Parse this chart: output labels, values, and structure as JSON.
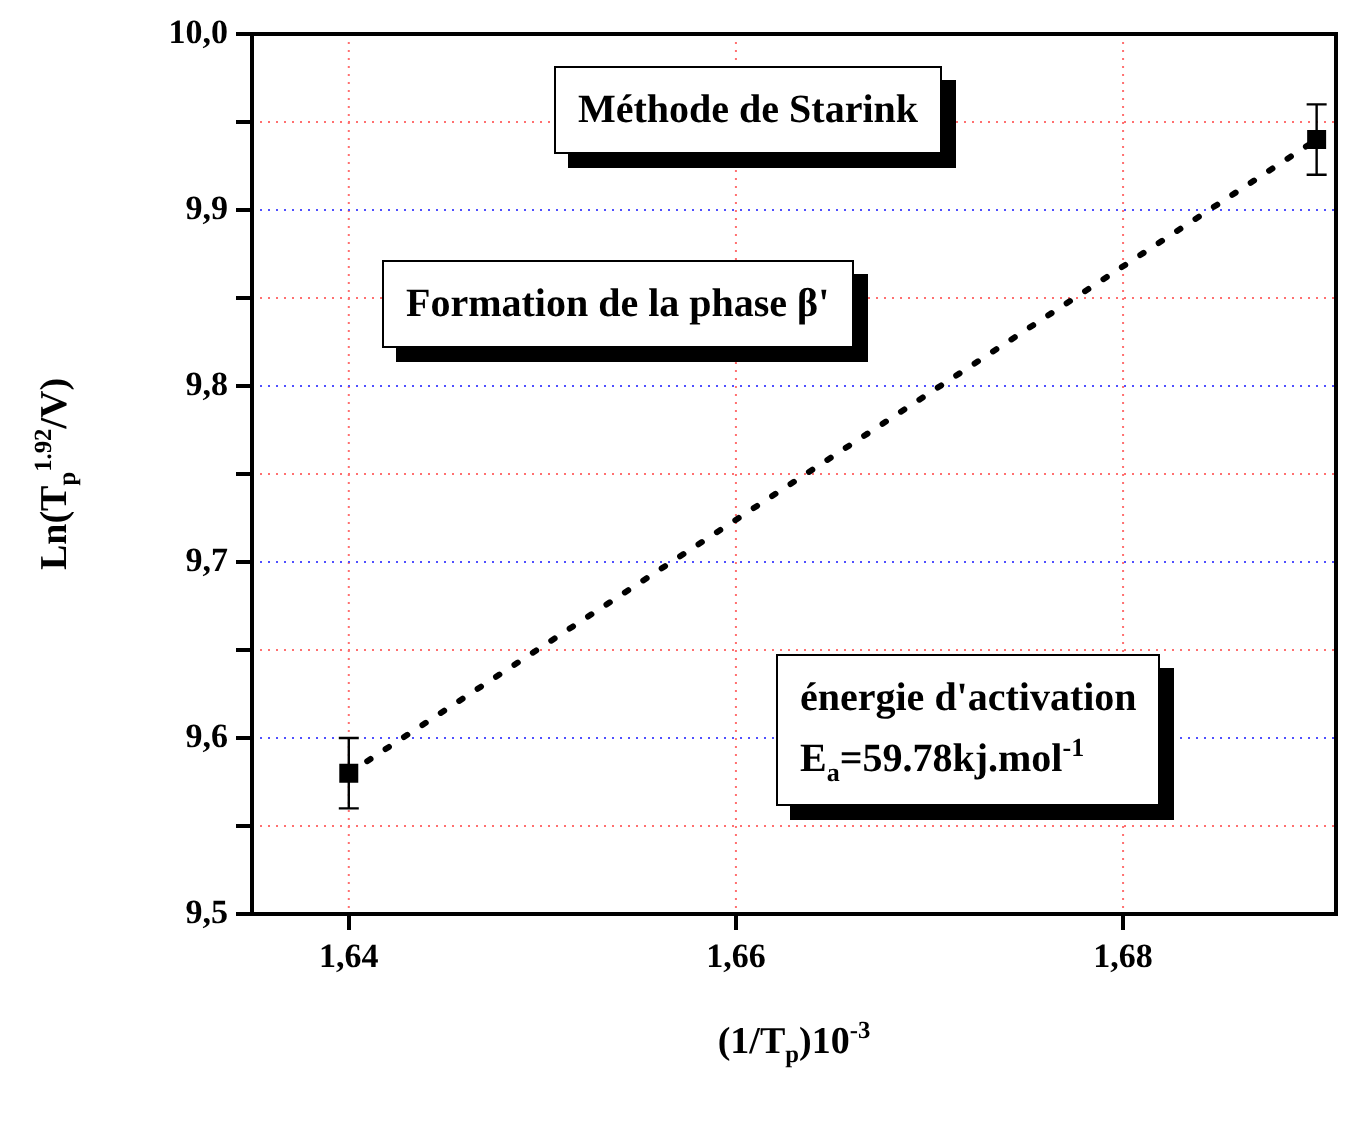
{
  "chart_data": {
    "type": "scatter",
    "xlabel": "(1/T$_{p}$)10$^{-3}$",
    "ylabel": "Ln(T$_{p}$$^{1.92}$/V)",
    "xlim": [
      1.635,
      1.691
    ],
    "xticks": [
      {
        "value": 1.64,
        "label": "1,64"
      },
      {
        "value": 1.66,
        "label": "1,66"
      },
      {
        "value": 1.68,
        "label": "1,68"
      }
    ],
    "ylim": [
      9.5,
      10.0
    ],
    "yticks": [
      {
        "value": 9.5,
        "label": "9,5"
      },
      {
        "value": 9.55,
        "label": null
      },
      {
        "value": 9.6,
        "label": "9,6"
      },
      {
        "value": 9.65,
        "label": null
      },
      {
        "value": 9.7,
        "label": "9,7"
      },
      {
        "value": 9.75,
        "label": null
      },
      {
        "value": 9.8,
        "label": "9,8"
      },
      {
        "value": 9.85,
        "label": null
      },
      {
        "value": 9.9,
        "label": "9,9"
      },
      {
        "value": 9.95,
        "label": null
      },
      {
        "value": 10.0,
        "label": "10,0"
      }
    ],
    "grid": true,
    "x": [
      1.64,
      1.69
    ],
    "series": [
      {
        "type": "line",
        "values": [
          9.58,
          9.94
        ],
        "color": "#000000",
        "line_style": "dotted",
        "marker": "none"
      },
      {
        "type": "scatter",
        "values": [
          9.58,
          9.94
        ],
        "errors": [
          0.02,
          0.02
        ],
        "color": "#000000",
        "marker": "square"
      }
    ],
    "annotations": [
      "Méthode de Starink",
      "Formation de la phase β'",
      "énergie d'activation\nE$_{a}$=59.78kj.mol$^{-1}$"
    ]
  }
}
